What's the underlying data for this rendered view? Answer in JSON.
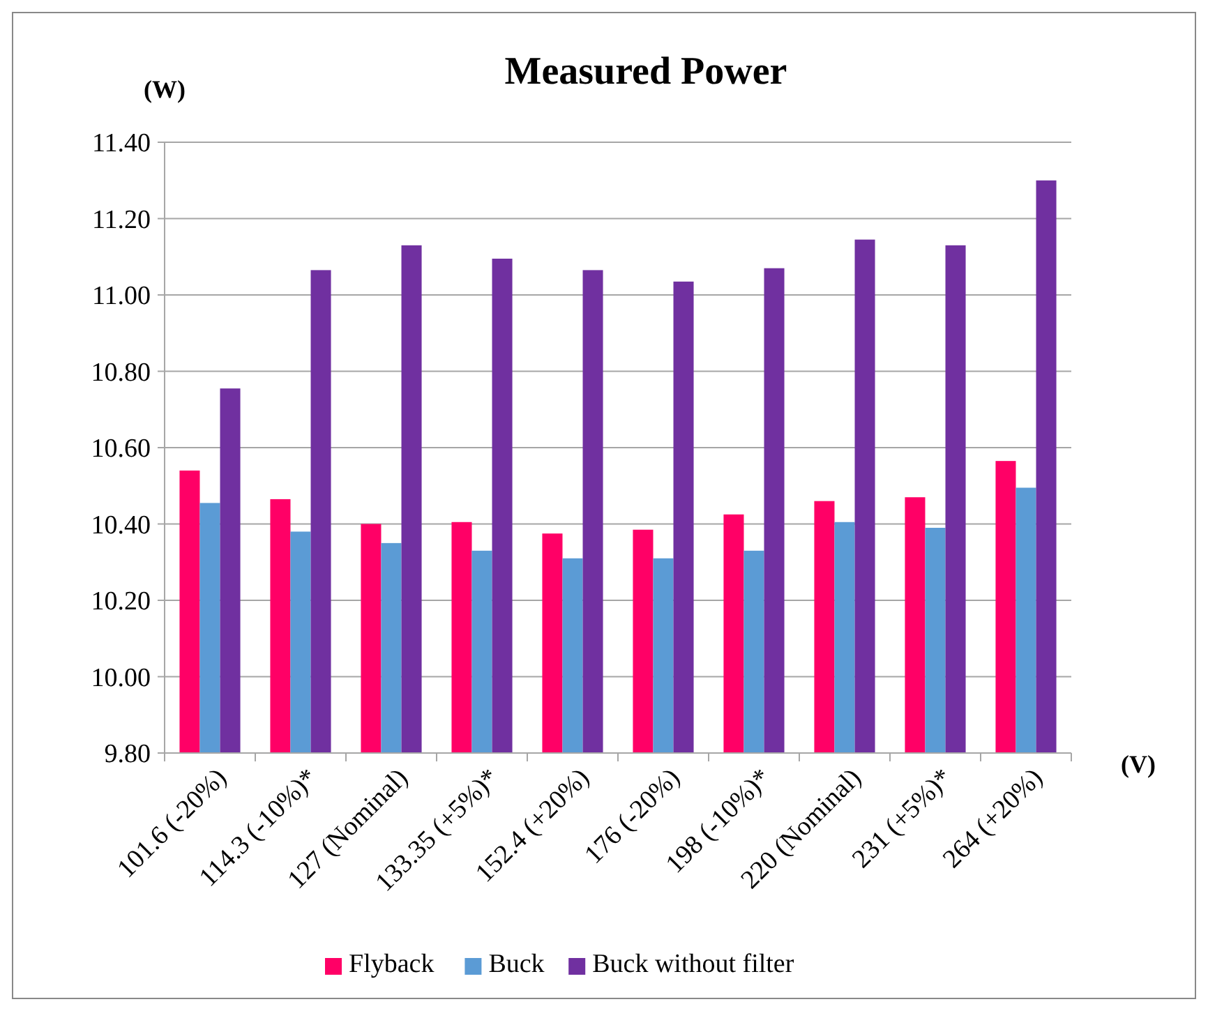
{
  "chart_data": {
    "type": "bar",
    "title": "Measured Power",
    "ylabel": "(W)",
    "xlabel": "(V)",
    "categories": [
      "101.6 (-20%)",
      "114.3 (-10%)*",
      "127 (Nominal)",
      "133.35 (+5%)*",
      "152.4 (+20%)",
      "176 (-20%)",
      "198 (-10%)*",
      "220 (Nominal)",
      "231 (+5%)*",
      "264 (+20%)"
    ],
    "series": [
      {
        "name": "Flyback",
        "color": "#ff0066",
        "values": [
          10.54,
          10.465,
          10.4,
          10.405,
          10.375,
          10.385,
          10.425,
          10.46,
          10.47,
          10.565
        ]
      },
      {
        "name": "Buck",
        "color": "#5b9bd5",
        "values": [
          10.455,
          10.38,
          10.35,
          10.33,
          10.31,
          10.31,
          10.33,
          10.405,
          10.39,
          10.495
        ]
      },
      {
        "name": "Buck without filter",
        "color": "#7030a0",
        "values": [
          10.755,
          11.065,
          11.13,
          11.095,
          11.065,
          11.035,
          11.07,
          11.145,
          11.13,
          11.3
        ]
      }
    ],
    "ylim": [
      9.8,
      11.4
    ],
    "yticks": [
      {
        "value": 9.8,
        "label": "9.80"
      },
      {
        "value": 10,
        "label": "10.00"
      },
      {
        "value": 10.2,
        "label": "10.20"
      },
      {
        "value": 10.4,
        "label": "10.40"
      },
      {
        "value": 10.6,
        "label": "10.60"
      },
      {
        "value": 10.8,
        "label": "10.80"
      },
      {
        "value": 11,
        "label": "11.00"
      },
      {
        "value": 11.2,
        "label": "11.20"
      },
      {
        "value": 11.4,
        "label": "11.40"
      }
    ],
    "grid": "y",
    "legend": "bottom"
  }
}
